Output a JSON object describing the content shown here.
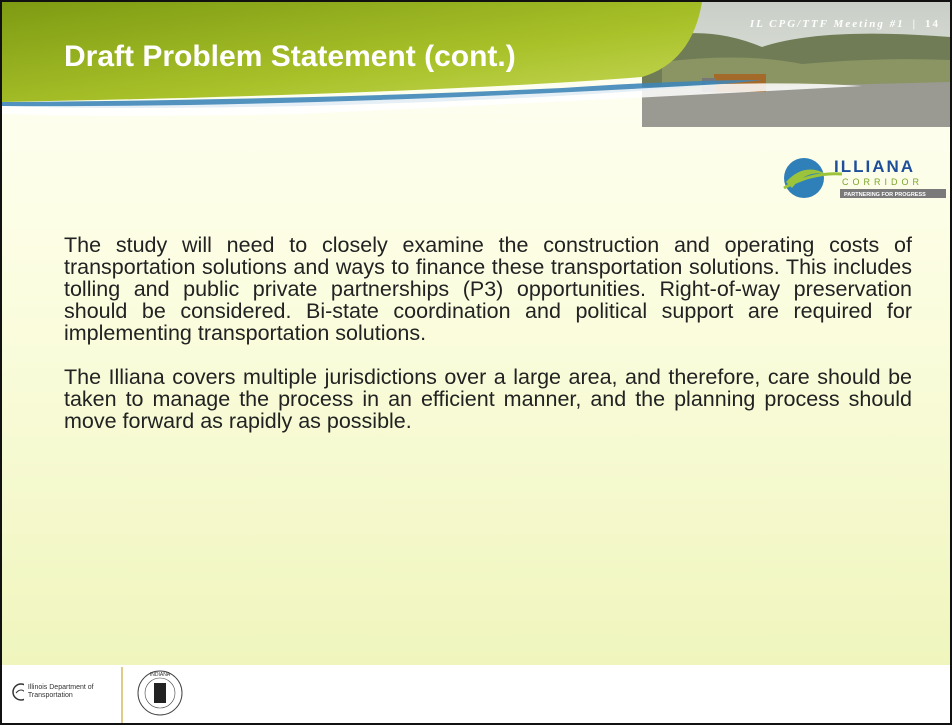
{
  "header": {
    "title": "Draft Problem Statement (cont.)",
    "meeting": "IL CPG/TTF Meeting #1",
    "separator": "|",
    "page": "14"
  },
  "logo": {
    "name": "ILLIANA",
    "sub": "CORRIDOR",
    "tagline": "PARTNERING FOR PROGRESS"
  },
  "body": {
    "paragraphs": [
      "The study will need to closely examine the construction and operating costs of transportation solutions and ways to finance these transportation solutions.  This includes tolling and public private partnerships (P3) opportunities.  Right-of-way preservation should be considered.  Bi-state coordination and political support are required for implementing transportation solutions.",
      "The Illiana covers multiple jurisdictions over a large area, and therefore, care should be taken to manage the process in an efficient manner, and the planning process should move forward as rapidly as possible."
    ]
  },
  "footer": {
    "idot": "Illinois Department of Transportation",
    "seal": "INDIANA"
  }
}
